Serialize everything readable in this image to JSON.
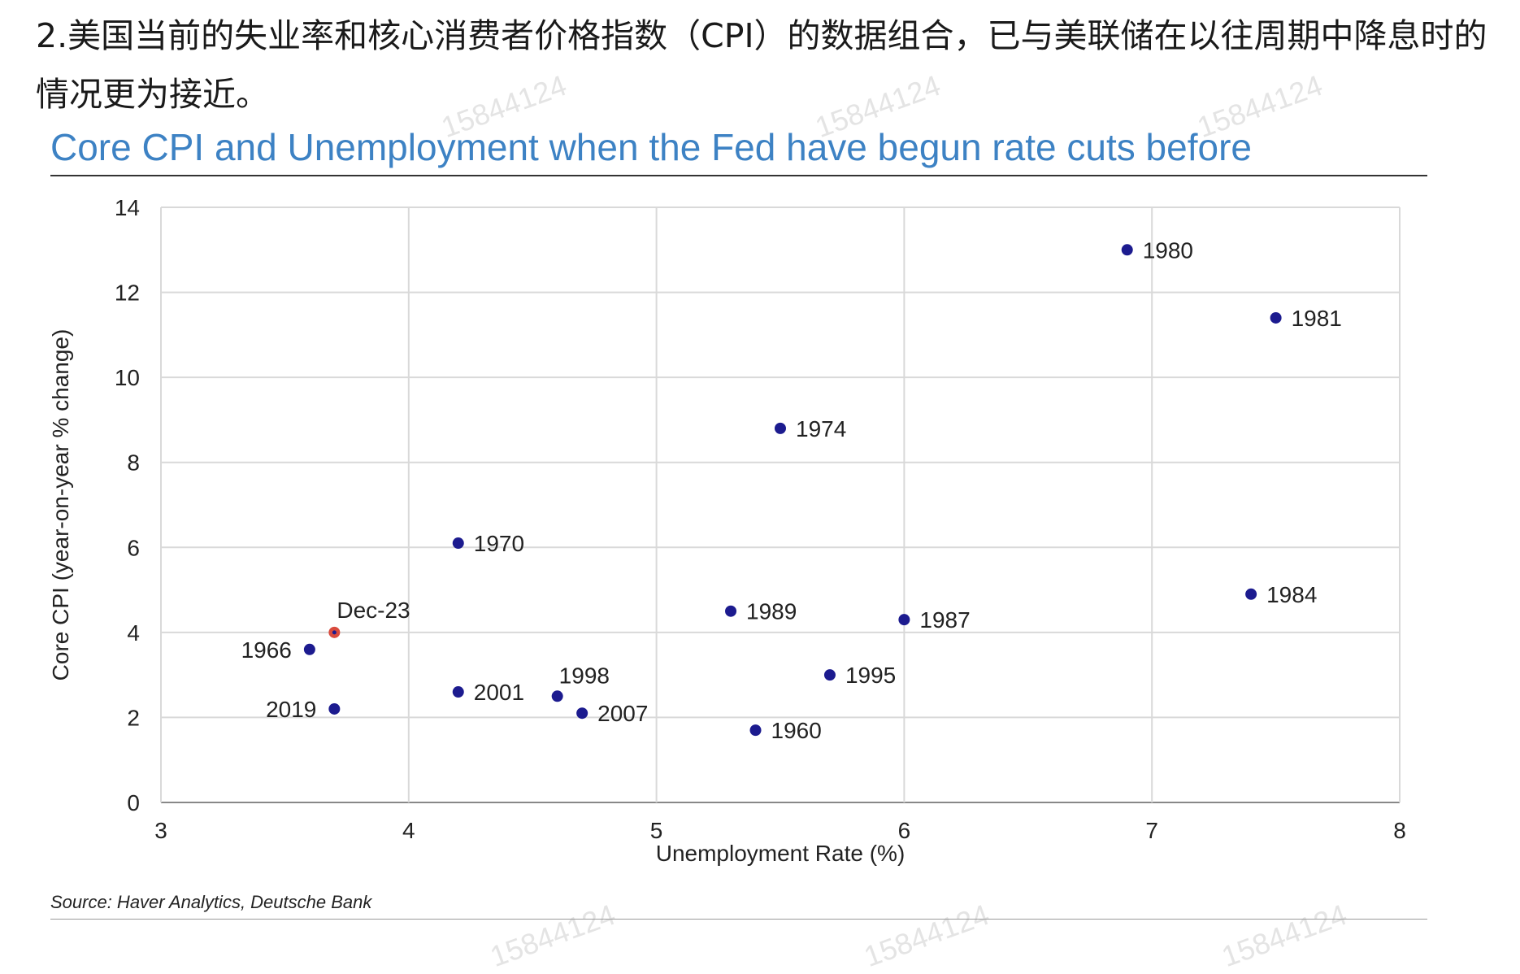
{
  "intro_text": "2.美国当前的失业率和核心消费者价格指数（CPI）的数据组合，已与美联储在以往周期中降息时的情况更为接近。",
  "watermark_text": "15844124",
  "source": "Source: Haver Analytics, Deutsche Bank",
  "colors": {
    "title": "#3d82c4",
    "point": "#1c1b8f",
    "highlight": "#d94a3d",
    "grid": "#d9d9d9"
  },
  "chart_data": {
    "type": "scatter",
    "title": "Core CPI and Unemployment when the Fed have begun rate cuts before",
    "xlabel": "Unemployment Rate (%)",
    "ylabel": "Core CPI (year-on-year % change)",
    "xlim": [
      3,
      8
    ],
    "ylim": [
      0,
      14
    ],
    "xticks": [
      3,
      4,
      5,
      6,
      7,
      8
    ],
    "yticks": [
      0,
      2,
      4,
      6,
      8,
      10,
      12,
      14
    ],
    "grid": true,
    "points": [
      {
        "label": "1980",
        "x": 6.9,
        "y": 13.0,
        "label_pos": "right"
      },
      {
        "label": "1981",
        "x": 7.5,
        "y": 11.4,
        "label_pos": "right"
      },
      {
        "label": "1974",
        "x": 5.5,
        "y": 8.8,
        "label_pos": "right"
      },
      {
        "label": "1970",
        "x": 4.2,
        "y": 6.1,
        "label_pos": "right"
      },
      {
        "label": "1984",
        "x": 7.4,
        "y": 4.9,
        "label_pos": "right"
      },
      {
        "label": "1989",
        "x": 5.3,
        "y": 4.5,
        "label_pos": "right"
      },
      {
        "label": "1987",
        "x": 6.0,
        "y": 4.3,
        "label_pos": "right"
      },
      {
        "label": "Dec-23",
        "x": 3.7,
        "y": 4.0,
        "label_pos": "above-right",
        "highlight": true
      },
      {
        "label": "1966",
        "x": 3.6,
        "y": 3.6,
        "label_pos": "left"
      },
      {
        "label": "1995",
        "x": 5.7,
        "y": 3.0,
        "label_pos": "right"
      },
      {
        "label": "2001",
        "x": 4.2,
        "y": 2.6,
        "label_pos": "right"
      },
      {
        "label": "1998",
        "x": 4.6,
        "y": 2.5,
        "label_pos": "above"
      },
      {
        "label": "2019",
        "x": 3.7,
        "y": 2.2,
        "label_pos": "left"
      },
      {
        "label": "2007",
        "x": 4.7,
        "y": 2.1,
        "label_pos": "right"
      },
      {
        "label": "1960",
        "x": 5.4,
        "y": 1.7,
        "label_pos": "right"
      }
    ]
  }
}
